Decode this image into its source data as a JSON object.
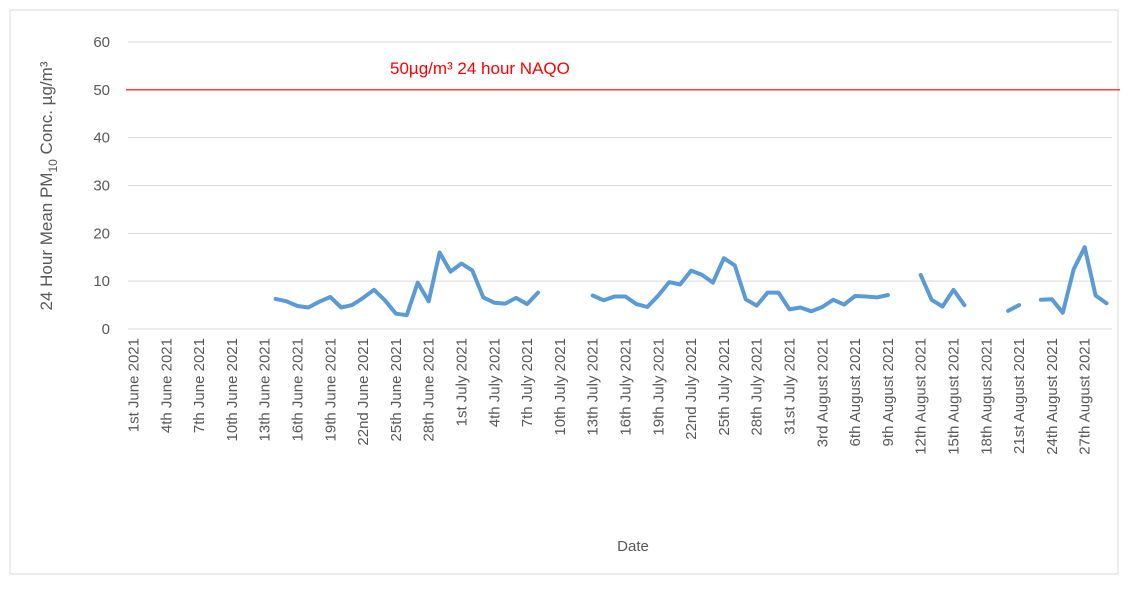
{
  "chart_data": {
    "type": "line",
    "x_label": "Date",
    "y_label": {
      "before": "24 Hour Mean  PM",
      "sub": "10",
      "after": " Conc. µg/m³"
    },
    "categories": [
      "1st June 2021",
      null,
      null,
      "4th June 2021",
      null,
      null,
      "7th June 2021",
      null,
      null,
      "10th June 2021",
      null,
      null,
      "13th June 2021",
      null,
      null,
      "16th June 2021",
      null,
      null,
      "19th June 2021",
      null,
      null,
      "22nd June 2021",
      null,
      null,
      "25th June 2021",
      null,
      null,
      "28th June 2021",
      null,
      null,
      "1st July 2021",
      null,
      null,
      "4th July 2021",
      null,
      null,
      "7th July 2021",
      null,
      null,
      "10th July 2021",
      null,
      null,
      "13th July 2021",
      null,
      null,
      "16th July 2021",
      null,
      null,
      "19th July 2021",
      null,
      null,
      "22nd July 2021",
      null,
      null,
      "25th July 2021",
      null,
      null,
      "28th July 2021",
      null,
      null,
      "31st July 2021",
      null,
      null,
      "3rd August 2021",
      null,
      null,
      "6th August 2021",
      null,
      null,
      "9th August 2021",
      null,
      null,
      "12th August 2021",
      null,
      null,
      "15th August 2021",
      null,
      null,
      "18th August 2021",
      null,
      null,
      "21st August 2021",
      null,
      null,
      "24th August 2021",
      null,
      null,
      "27th August 2021",
      null,
      null
    ],
    "series": [
      {
        "color": "#5b9bd5",
        "values": [
          null,
          null,
          null,
          null,
          null,
          null,
          null,
          null,
          null,
          null,
          null,
          null,
          null,
          6.3,
          5.8,
          4.8,
          4.5,
          5.7,
          6.7,
          4.5,
          5.0,
          6.5,
          8.2,
          6.0,
          3.2,
          2.9,
          9.7,
          5.8,
          16.0,
          12.0,
          13.7,
          12.2,
          6.6,
          5.5,
          5.3,
          6.5,
          5.2,
          7.6,
          null,
          null,
          null,
          null,
          7.0,
          6.0,
          6.8,
          6.8,
          5.2,
          4.6,
          7.0,
          9.8,
          9.3,
          12.2,
          11.3,
          9.7,
          14.8,
          13.3,
          6.2,
          4.9,
          7.6,
          7.6,
          4.1,
          4.5,
          3.7,
          4.6,
          6.1,
          5.1,
          6.9,
          6.8,
          6.6,
          7.1,
          null,
          null,
          11.3,
          6.1,
          4.7,
          8.2,
          5.0,
          null,
          null,
          null,
          3.8,
          5.0,
          null,
          6.1,
          6.2,
          3.4,
          12.5,
          17.1,
          7.0,
          5.4
        ]
      }
    ],
    "reference_lines": [
      {
        "value": 50,
        "color": "#ff0000",
        "label": "50µg/m³ 24 hour NAQO"
      }
    ],
    "ylim": [
      0,
      60
    ],
    "yticks": [
      0,
      10,
      20,
      30,
      40,
      50,
      60
    ],
    "grid": true
  }
}
